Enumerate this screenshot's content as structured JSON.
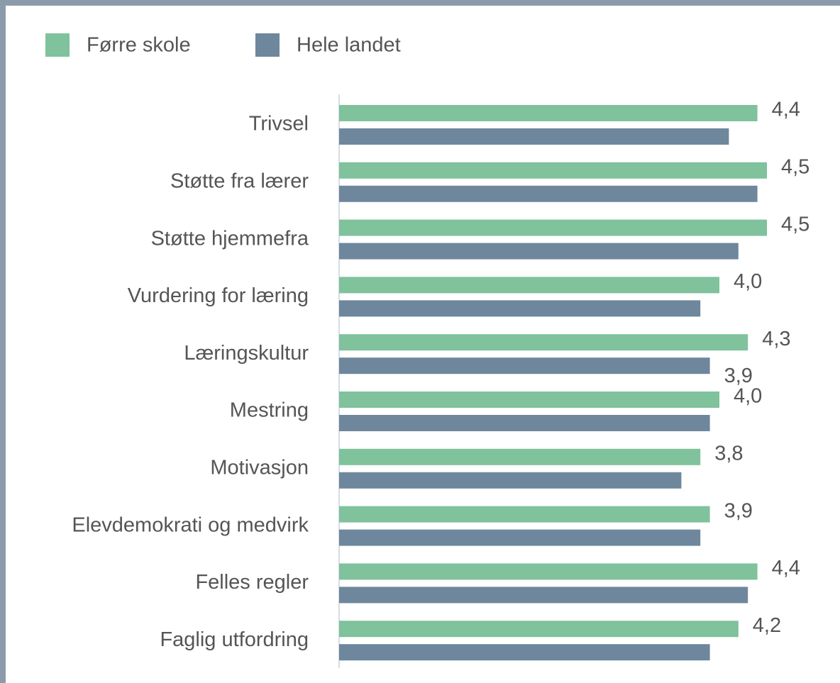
{
  "chart_data": {
    "type": "bar",
    "orientation": "horizontal",
    "categories": [
      "Trivsel",
      "Støtte fra lærer",
      "Støtte hjemmefra",
      "Vurdering for læring",
      "Læringskultur",
      "Mestring",
      "Motivasjon",
      "Elevdemokrati og medvirk",
      "Felles regler",
      "Faglig utfordring"
    ],
    "series": [
      {
        "name": "Førre skole",
        "color": "#7fc29b",
        "values": [
          4.4,
          4.5,
          4.5,
          4.0,
          4.3,
          4.0,
          3.8,
          3.9,
          4.4,
          4.2
        ],
        "value_labels": [
          "4,4",
          "4,5",
          "4,5",
          "4,0",
          "4,3",
          "4,0",
          "3,8",
          "3,9",
          "4,4",
          "4,2"
        ]
      },
      {
        "name": "Hele landet",
        "color": "#6e879c",
        "values": [
          4.1,
          4.4,
          4.2,
          3.8,
          3.9,
          3.9,
          3.6,
          3.8,
          4.3,
          3.9
        ],
        "value_labels": [
          null,
          null,
          null,
          null,
          "3,9",
          null,
          null,
          null,
          null,
          null
        ]
      }
    ],
    "xlim": [
      0,
      5
    ],
    "legend": "top-left"
  }
}
